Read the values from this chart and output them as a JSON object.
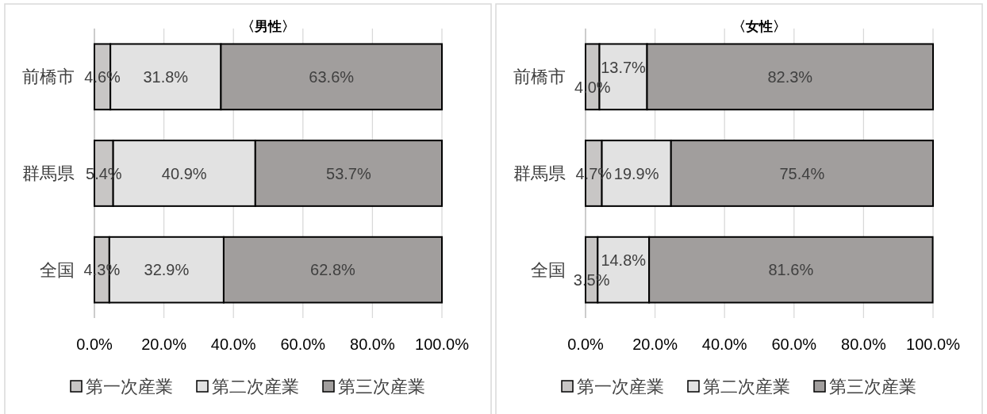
{
  "chart_data": [
    {
      "type": "bar",
      "orientation": "horizontal",
      "stacked": true,
      "title": "〈男性〉",
      "categories": [
        "前橋市",
        "群馬県",
        "全国"
      ],
      "series": [
        {
          "name": "第一次産業",
          "color": "#c8c6c5",
          "values": [
            4.6,
            5.4,
            4.3
          ],
          "value_labels": [
            "4.6%",
            "5.4%",
            "4.3%"
          ]
        },
        {
          "name": "第二次産業",
          "color": "#e2e2e2",
          "values": [
            31.8,
            40.9,
            32.9
          ],
          "value_labels": [
            "31.8%",
            "40.9%",
            "32.9%"
          ]
        },
        {
          "name": "第三次産業",
          "color": "#a19e9d",
          "values": [
            63.6,
            53.7,
            62.8
          ],
          "value_labels": [
            "63.6%",
            "53.7%",
            "62.8%"
          ]
        }
      ],
      "xlim": [
        0,
        100
      ],
      "xticks": [
        {
          "value": 0,
          "label": "0.0%"
        },
        {
          "value": 20,
          "label": "20.0%"
        },
        {
          "value": 40,
          "label": "40.0%"
        },
        {
          "value": 60,
          "label": "60.0%"
        },
        {
          "value": 80,
          "label": "80.0%"
        },
        {
          "value": 100,
          "label": "100.0%"
        }
      ],
      "grid": "x",
      "legend": "bottom"
    },
    {
      "type": "bar",
      "orientation": "horizontal",
      "stacked": true,
      "title": "〈女性〉",
      "categories": [
        "前橋市",
        "群馬県",
        "全国"
      ],
      "series": [
        {
          "name": "第一次産業",
          "color": "#c8c6c5",
          "values": [
            4.0,
            4.7,
            3.5
          ],
          "value_labels": [
            "4.0%",
            "4.7%",
            "3.5%"
          ]
        },
        {
          "name": "第二次産業",
          "color": "#e2e2e2",
          "values": [
            13.7,
            19.9,
            14.8
          ],
          "value_labels": [
            "13.7%",
            "19.9%",
            "14.8%"
          ]
        },
        {
          "name": "第三次産業",
          "color": "#a19e9d",
          "values": [
            82.3,
            75.4,
            81.6
          ],
          "value_labels": [
            "82.3%",
            "75.4%",
            "81.6%"
          ]
        }
      ],
      "xlim": [
        0,
        100
      ],
      "xticks": [
        {
          "value": 0,
          "label": "0.0%"
        },
        {
          "value": 20,
          "label": "20.0%"
        },
        {
          "value": 40,
          "label": "40.0%"
        },
        {
          "value": 60,
          "label": "60.0%"
        },
        {
          "value": 80,
          "label": "80.0%"
        },
        {
          "value": 100,
          "label": "100.0%"
        }
      ],
      "grid": "x",
      "legend": "bottom"
    }
  ]
}
